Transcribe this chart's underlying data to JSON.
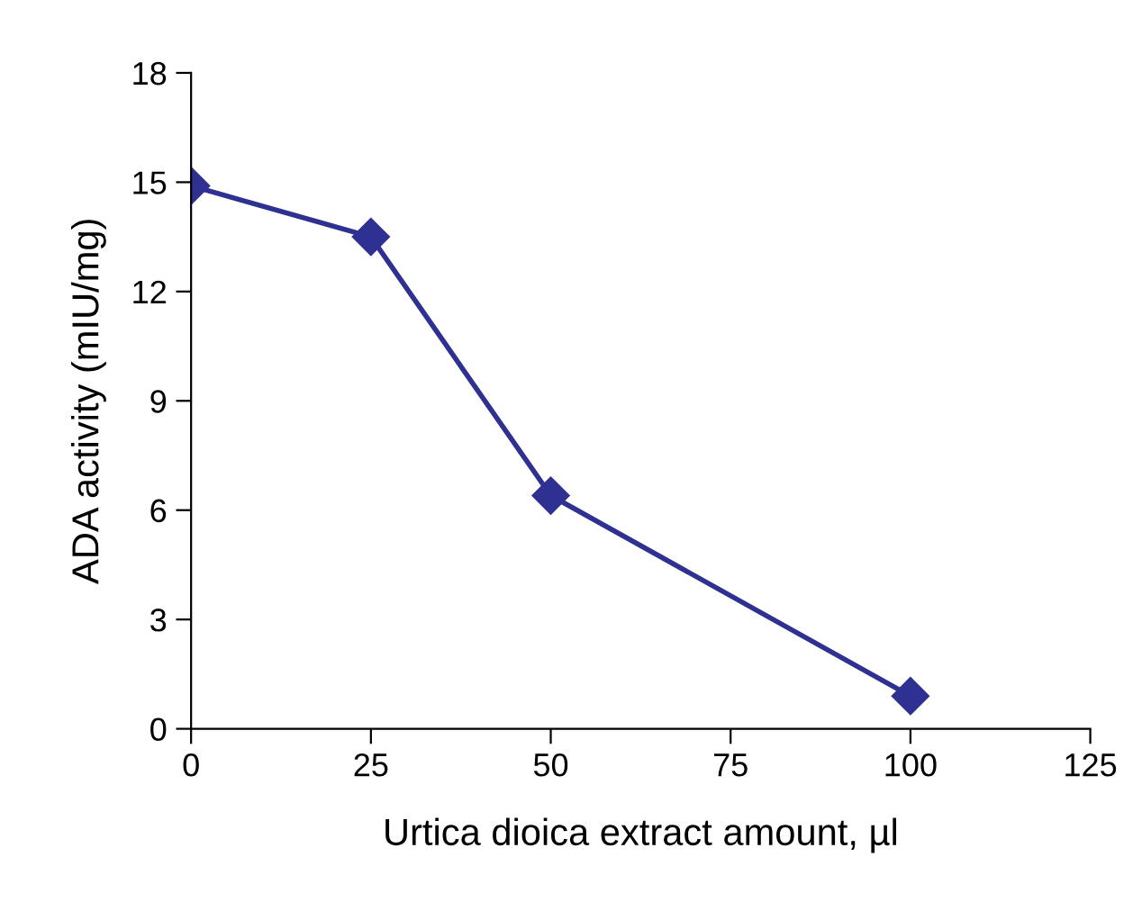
{
  "chart_data": {
    "type": "line",
    "xlabel": "Urtica dioica extract amount, µl",
    "ylabel": "ADA activity (mIU/mg)",
    "x": [
      0,
      25,
      50,
      100
    ],
    "series": [
      {
        "color": "#2e3192",
        "values": [
          14.9,
          13.5,
          6.4,
          0.9
        ]
      }
    ],
    "xlim": [
      0,
      125
    ],
    "xticks": [
      0,
      25,
      50,
      75,
      100,
      125
    ],
    "ylim": [
      0,
      18
    ],
    "yticks": [
      0,
      3,
      6,
      9,
      12,
      15,
      18
    ],
    "marker": "diamond",
    "line_style": "solid",
    "grid": false,
    "legend": false
  }
}
